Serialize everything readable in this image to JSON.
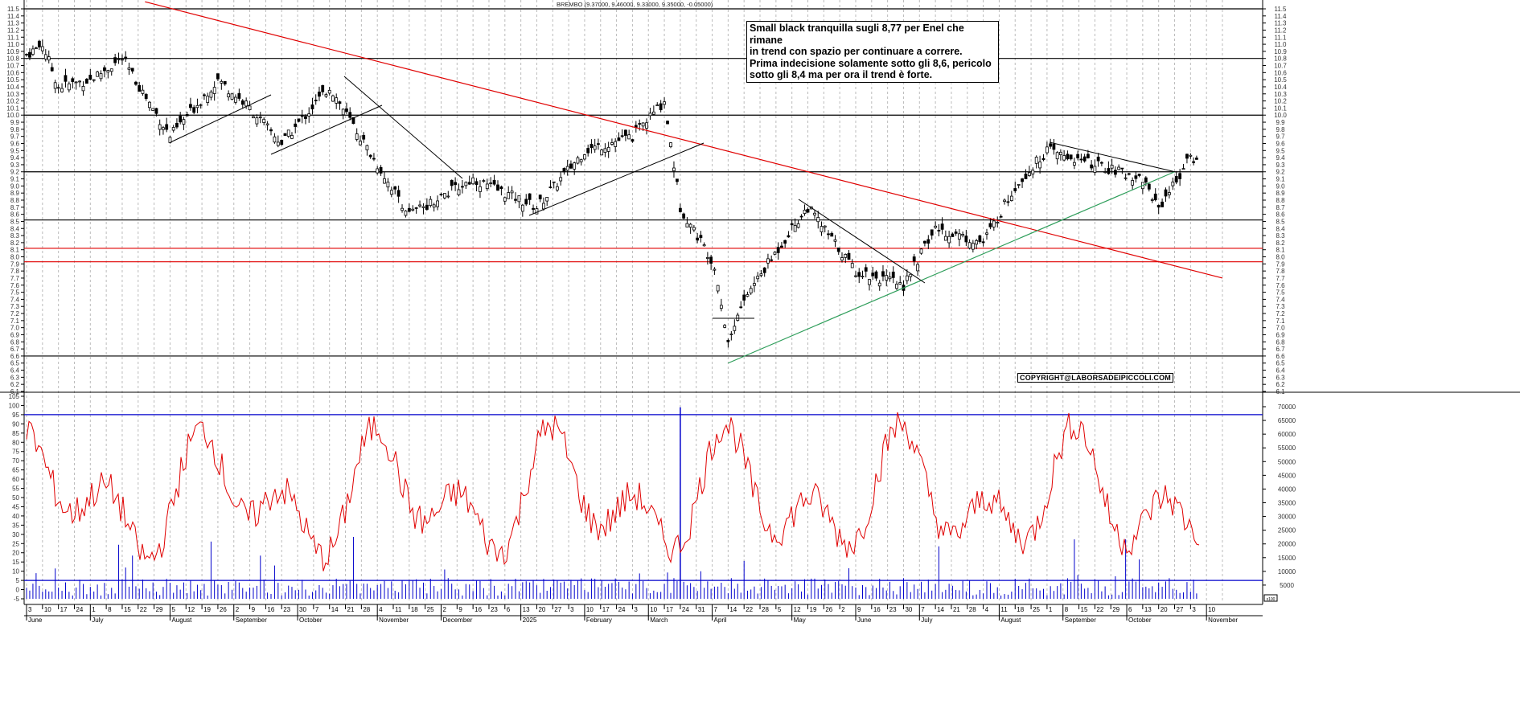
{
  "chart_title": "BREMBO (9.37000, 9.46000, 9.33000, 9.35000, -0.05000)",
  "annotation": "Small black tranquilla sugli 8,77 per Enel che rimane\nin trend con spazio per continuare a correre.\nPrima indecisione solamente sotto gli 8,6, pericolo\nsotto gli 8,4 ma per ora il trend è forte.",
  "copyright": "COPYRIGHT@LABORSADEIPICCOLI.COM",
  "volume_unit": "x100",
  "colors": {
    "candles": "#000000",
    "support_lines": "#000000",
    "red_levels": "#e00000",
    "green_trend": "#2e9e5a",
    "oscillator": "#e00000",
    "volume": "#0000cc",
    "osc_levels": "#0000cc"
  },
  "chart_data": {
    "type": "candlestick",
    "title": "BREMBO (9.37000, 9.46000, 9.33000, 9.35000, -0.05000)",
    "last_bar": {
      "open": 9.37,
      "high": 9.46,
      "low": 9.33,
      "close": 9.35,
      "change": -0.05
    },
    "price_axis": {
      "min": 6.1,
      "max": 11.5,
      "step": 0.1
    },
    "horizontal_levels_black": [
      11.5,
      10.8,
      10.0,
      9.2,
      8.52,
      6.6
    ],
    "horizontal_levels_red": [
      8.12,
      7.93
    ],
    "trendlines": [
      {
        "color": "red",
        "from": [
          "2024-07-25",
          11.6
        ],
        "to": [
          "2025-11-10",
          7.7
        ]
      },
      {
        "color": "green",
        "from": [
          "2025-04-07",
          6.5
        ],
        "to": [
          "2025-10-20",
          9.2
        ]
      }
    ],
    "price_path_approx": [
      {
        "date": "2024-06-03",
        "close": 10.85
      },
      {
        "date": "2024-06-10",
        "close": 11.0
      },
      {
        "date": "2024-06-17",
        "close": 10.4
      },
      {
        "date": "2024-07-01",
        "close": 10.5
      },
      {
        "date": "2024-07-15",
        "close": 10.8
      },
      {
        "date": "2024-08-05",
        "close": 9.7
      },
      {
        "date": "2024-08-26",
        "close": 10.5
      },
      {
        "date": "2024-09-09",
        "close": 10.1
      },
      {
        "date": "2024-09-23",
        "close": 9.6
      },
      {
        "date": "2024-10-14",
        "close": 10.4
      },
      {
        "date": "2024-11-04",
        "close": 9.3
      },
      {
        "date": "2024-11-18",
        "close": 8.6
      },
      {
        "date": "2024-12-16",
        "close": 9.1
      },
      {
        "date": "2025-01-13",
        "close": 8.7
      },
      {
        "date": "2025-02-03",
        "close": 9.5
      },
      {
        "date": "2025-02-24",
        "close": 9.7
      },
      {
        "date": "2025-03-10",
        "close": 10.2
      },
      {
        "date": "2025-03-17",
        "close": 8.7
      },
      {
        "date": "2025-04-01",
        "close": 7.9
      },
      {
        "date": "2025-04-07",
        "close": 6.8
      },
      {
        "date": "2025-04-14",
        "close": 7.4
      },
      {
        "date": "2025-05-05",
        "close": 8.4
      },
      {
        "date": "2025-05-12",
        "close": 8.7
      },
      {
        "date": "2025-06-02",
        "close": 7.8
      },
      {
        "date": "2025-06-23",
        "close": 7.6
      },
      {
        "date": "2025-07-07",
        "close": 8.4
      },
      {
        "date": "2025-07-28",
        "close": 8.2
      },
      {
        "date": "2025-08-11",
        "close": 9.0
      },
      {
        "date": "2025-08-25",
        "close": 9.5
      },
      {
        "date": "2025-09-15",
        "close": 9.3
      },
      {
        "date": "2025-10-06",
        "close": 9.1
      },
      {
        "date": "2025-10-13",
        "close": 8.7
      },
      {
        "date": "2025-10-27",
        "close": 9.4
      },
      {
        "date": "2025-10-31",
        "close": 9.35
      }
    ],
    "oscillator": {
      "axis": {
        "min": -5,
        "max": 105,
        "step": 5
      },
      "levels": [
        95,
        5
      ]
    },
    "volume": {
      "axis_labels": [
        5000,
        10000,
        15000,
        20000,
        25000,
        30000,
        35000,
        40000,
        45000,
        50000,
        55000,
        60000,
        65000,
        70000
      ],
      "unit": "x100"
    },
    "x_ticks": [
      "3",
      "10",
      "17",
      "24",
      "1",
      "8",
      "15",
      "22",
      "29",
      "5",
      "12",
      "19",
      "26",
      "2",
      "9",
      "16",
      "23",
      "30",
      "7",
      "14",
      "21",
      "28",
      "4",
      "11",
      "18",
      "25",
      "2",
      "9",
      "16",
      "23",
      "6",
      "13",
      "20",
      "27",
      "3",
      "10",
      "17",
      "24",
      "3",
      "10",
      "17",
      "24",
      "31",
      "7",
      "14",
      "22",
      "28",
      "5",
      "12",
      "19",
      "26",
      "2",
      "9",
      "16",
      "23",
      "30",
      "7",
      "14",
      "21",
      "28",
      "4",
      "11",
      "18",
      "25",
      "1",
      "8",
      "15",
      "22",
      "29",
      "6",
      "13",
      "20",
      "27",
      "3",
      "10"
    ],
    "months": [
      "June",
      "July",
      "August",
      "September",
      "October",
      "November",
      "December",
      "2025",
      "February",
      "March",
      "April",
      "May",
      "June",
      "July",
      "August",
      "September",
      "October",
      "November"
    ]
  }
}
